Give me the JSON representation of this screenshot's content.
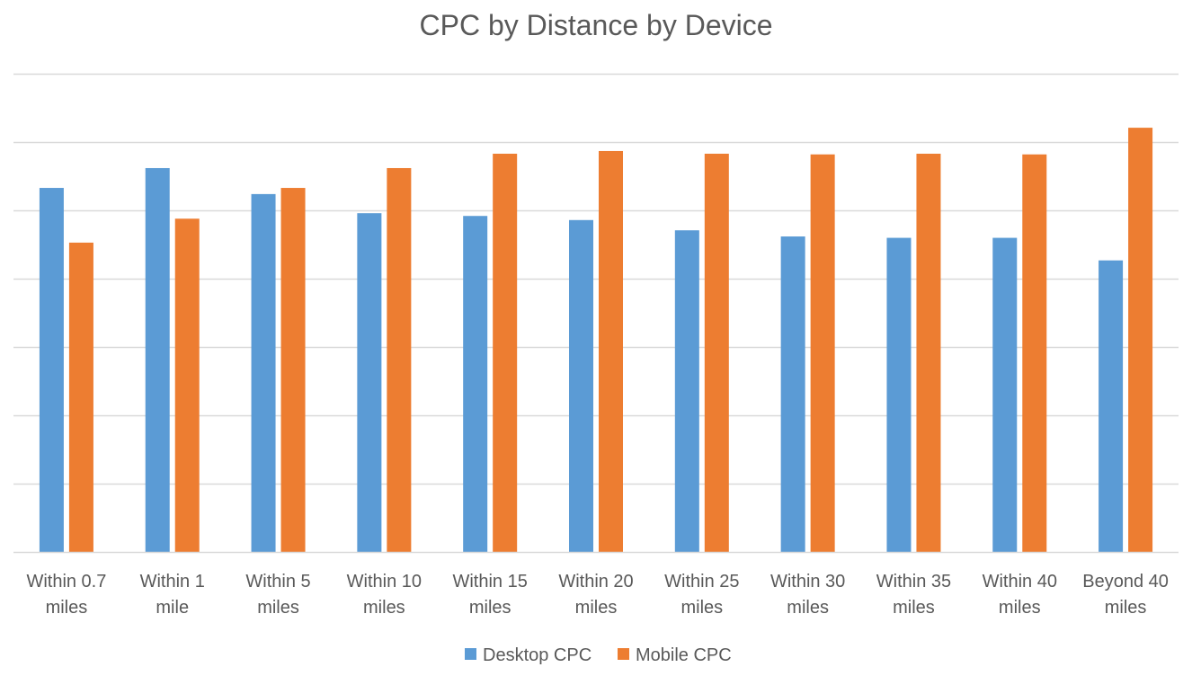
{
  "chart_data": {
    "type": "bar",
    "title": "CPC by Distance by Device",
    "xlabel": "",
    "ylabel": "",
    "categories": [
      [
        "Within 0.7",
        "miles"
      ],
      [
        "Within 1",
        "mile"
      ],
      [
        "Within 5",
        "miles"
      ],
      [
        "Within 10",
        "miles"
      ],
      [
        "Within 15",
        "miles"
      ],
      [
        "Within 20",
        "miles"
      ],
      [
        "Within 25",
        "miles"
      ],
      [
        "Within 30",
        "miles"
      ],
      [
        "Within 35",
        "miles"
      ],
      [
        "Within 40",
        "miles"
      ],
      [
        "Beyond 40",
        "miles"
      ]
    ],
    "series": [
      {
        "name": "Desktop CPC",
        "color": "#5B9BD5",
        "values": [
          5.33,
          5.62,
          5.24,
          4.96,
          4.92,
          4.86,
          4.71,
          4.62,
          4.6,
          4.6,
          4.27
        ]
      },
      {
        "name": "Mobile CPC",
        "color": "#ED7D31",
        "values": [
          4.53,
          4.88,
          5.33,
          5.62,
          5.83,
          5.87,
          5.83,
          5.82,
          5.83,
          5.82,
          6.21
        ]
      }
    ],
    "ylim": [
      0,
      7
    ],
    "ytick_step": 1,
    "y_tick_labels_shown": false,
    "grid": true,
    "legend_position": "bottom"
  }
}
